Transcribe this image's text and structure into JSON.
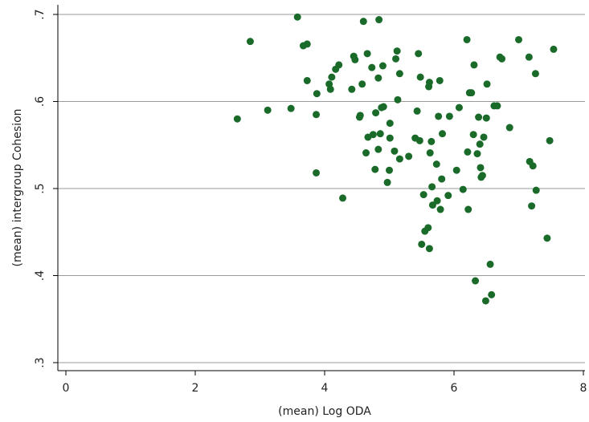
{
  "chart_data": {
    "type": "scatter",
    "xlabel": "(mean) Log ODA",
    "ylabel": "(mean) intergroup Cohesion",
    "xlim": [
      0,
      8
    ],
    "ylim": [
      0.3,
      0.7
    ],
    "x_ticks": [
      0,
      2,
      4,
      6,
      8
    ],
    "x_tick_labels": [
      "0",
      "2",
      "4",
      "6",
      "8"
    ],
    "y_ticks": [
      0.3,
      0.4,
      0.5,
      0.6,
      0.7
    ],
    "y_tick_labels": [
      ".3",
      ".4",
      ".5",
      ".6",
      ".7"
    ],
    "grid": "horizontal",
    "marker_color": "#1a6b2a",
    "points": [
      [
        2.65,
        0.58
      ],
      [
        2.85,
        0.669
      ],
      [
        3.12,
        0.59
      ],
      [
        3.48,
        0.592
      ],
      [
        3.58,
        0.697
      ],
      [
        3.67,
        0.664
      ],
      [
        3.73,
        0.666
      ],
      [
        3.73,
        0.624
      ],
      [
        3.87,
        0.585
      ],
      [
        3.88,
        0.609
      ],
      [
        3.87,
        0.518
      ],
      [
        4.07,
        0.62
      ],
      [
        4.09,
        0.614
      ],
      [
        4.11,
        0.628
      ],
      [
        4.17,
        0.637
      ],
      [
        4.22,
        0.642
      ],
      [
        4.28,
        0.489
      ],
      [
        4.42,
        0.614
      ],
      [
        4.45,
        0.652
      ],
      [
        4.47,
        0.648
      ],
      [
        4.54,
        0.582
      ],
      [
        4.55,
        0.584
      ],
      [
        4.58,
        0.62
      ],
      [
        4.6,
        0.692
      ],
      [
        4.66,
        0.655
      ],
      [
        4.64,
        0.541
      ],
      [
        4.67,
        0.559
      ],
      [
        4.73,
        0.639
      ],
      [
        4.75,
        0.562
      ],
      [
        4.78,
        0.522
      ],
      [
        4.79,
        0.587
      ],
      [
        4.83,
        0.627
      ],
      [
        4.83,
        0.545
      ],
      [
        4.84,
        0.694
      ],
      [
        4.86,
        0.563
      ],
      [
        4.88,
        0.593
      ],
      [
        4.9,
        0.641
      ],
      [
        4.91,
        0.594
      ],
      [
        4.97,
        0.507
      ],
      [
        5.0,
        0.521
      ],
      [
        5.01,
        0.575
      ],
      [
        5.01,
        0.558
      ],
      [
        5.08,
        0.543
      ],
      [
        5.1,
        0.649
      ],
      [
        5.12,
        0.658
      ],
      [
        5.13,
        0.602
      ],
      [
        5.16,
        0.632
      ],
      [
        5.16,
        0.534
      ],
      [
        5.3,
        0.537
      ],
      [
        5.4,
        0.558
      ],
      [
        5.43,
        0.589
      ],
      [
        5.45,
        0.655
      ],
      [
        5.47,
        0.555
      ],
      [
        5.48,
        0.628
      ],
      [
        5.5,
        0.436
      ],
      [
        5.53,
        0.493
      ],
      [
        5.55,
        0.451
      ],
      [
        5.6,
        0.455
      ],
      [
        5.61,
        0.617
      ],
      [
        5.62,
        0.622
      ],
      [
        5.62,
        0.431
      ],
      [
        5.63,
        0.541
      ],
      [
        5.65,
        0.554
      ],
      [
        5.66,
        0.502
      ],
      [
        5.67,
        0.481
      ],
      [
        5.73,
        0.528
      ],
      [
        5.74,
        0.486
      ],
      [
        5.76,
        0.583
      ],
      [
        5.78,
        0.624
      ],
      [
        5.79,
        0.476
      ],
      [
        5.81,
        0.511
      ],
      [
        5.82,
        0.563
      ],
      [
        5.91,
        0.492
      ],
      [
        5.93,
        0.583
      ],
      [
        6.04,
        0.521
      ],
      [
        6.08,
        0.593
      ],
      [
        6.14,
        0.499
      ],
      [
        6.2,
        0.671
      ],
      [
        6.21,
        0.542
      ],
      [
        6.22,
        0.476
      ],
      [
        6.24,
        0.61
      ],
      [
        6.27,
        0.61
      ],
      [
        6.3,
        0.562
      ],
      [
        6.31,
        0.642
      ],
      [
        6.33,
        0.394
      ],
      [
        6.36,
        0.54
      ],
      [
        6.38,
        0.582
      ],
      [
        6.4,
        0.551
      ],
      [
        6.41,
        0.524
      ],
      [
        6.42,
        0.513
      ],
      [
        6.44,
        0.515
      ],
      [
        6.46,
        0.559
      ],
      [
        6.49,
        0.371
      ],
      [
        6.5,
        0.581
      ],
      [
        6.51,
        0.62
      ],
      [
        6.56,
        0.413
      ],
      [
        6.58,
        0.378
      ],
      [
        6.62,
        0.595
      ],
      [
        6.67,
        0.595
      ],
      [
        6.71,
        0.651
      ],
      [
        6.74,
        0.649
      ],
      [
        6.86,
        0.57
      ],
      [
        7.0,
        0.671
      ],
      [
        7.16,
        0.651
      ],
      [
        7.17,
        0.531
      ],
      [
        7.2,
        0.48
      ],
      [
        7.22,
        0.526
      ],
      [
        7.26,
        0.632
      ],
      [
        7.27,
        0.498
      ],
      [
        7.44,
        0.443
      ],
      [
        7.48,
        0.555
      ],
      [
        7.54,
        0.66
      ]
    ]
  }
}
